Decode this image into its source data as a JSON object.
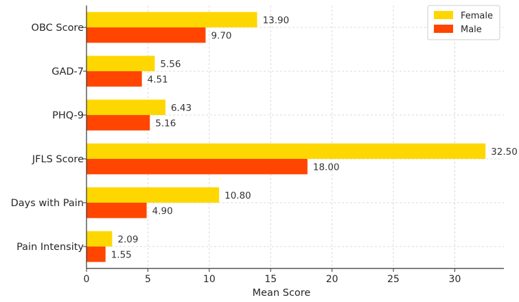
{
  "chart_data": {
    "type": "bar",
    "orientation": "horizontal",
    "title": "",
    "xlabel": "Mean Score",
    "ylabel": "",
    "xlim": [
      0,
      34
    ],
    "xticks": [
      0,
      5,
      10,
      15,
      20,
      25,
      30
    ],
    "grid": true,
    "legend_position": "top-right",
    "categories": [
      "OBC Score",
      "GAD-7",
      "PHQ-9",
      "JFLS Score",
      "Days with Pain",
      "Pain Intensity"
    ],
    "series": [
      {
        "name": "Female",
        "color": "#FFD700",
        "values": [
          13.9,
          5.56,
          6.43,
          32.5,
          10.8,
          2.09
        ]
      },
      {
        "name": "Male",
        "color": "#FF4500",
        "values": [
          9.7,
          4.51,
          5.16,
          18.0,
          4.9,
          1.55
        ]
      }
    ]
  }
}
